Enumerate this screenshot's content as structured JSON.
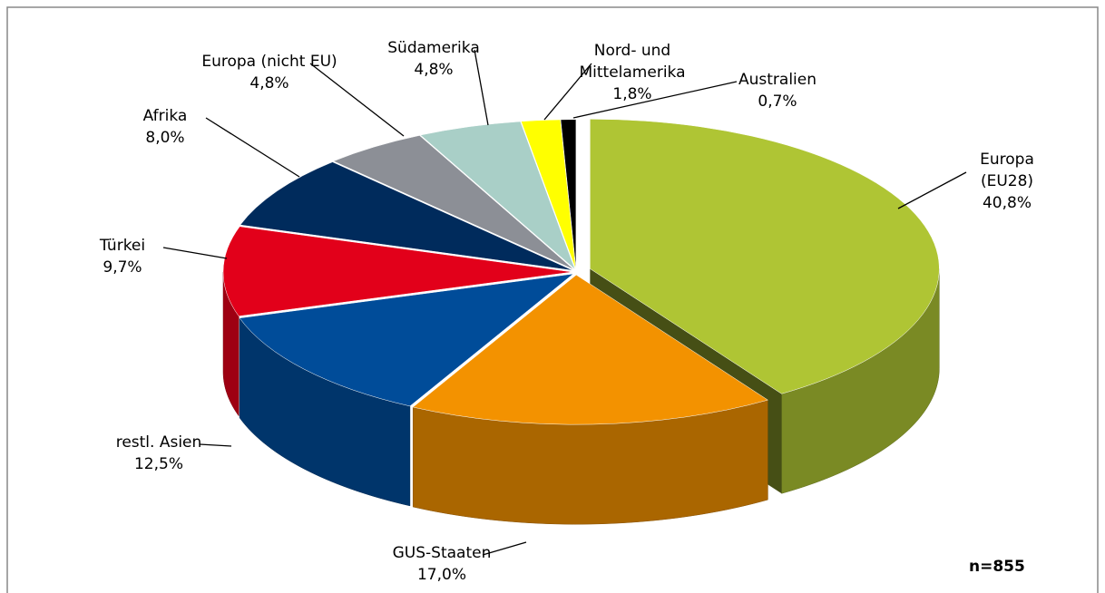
{
  "chart_data": {
    "type": "pie3d",
    "categories": [
      "Europa (EU28)",
      "GUS-Staaten",
      "restl. Asien",
      "Türkei",
      "Afrika",
      "Europa (nicht EU)",
      "Südamerika",
      "Nord- und\nMittelamerika",
      "Australien"
    ],
    "values": [
      40.8,
      17.0,
      12.5,
      9.7,
      8.0,
      4.8,
      4.8,
      1.8,
      0.7
    ],
    "value_labels": [
      "40,8%",
      "17,0%",
      "12,5%",
      "9,7%",
      "8,0%",
      "4,8%",
      "4,8%",
      "1,8%",
      "0,7%"
    ],
    "colors": [
      "#afc534",
      "#f39200",
      "#004c99",
      "#e2001a",
      "#002b5c",
      "#8c8f96",
      "#a9cfc7",
      "#ffff00",
      "#000000"
    ],
    "annotation": "n=855"
  }
}
